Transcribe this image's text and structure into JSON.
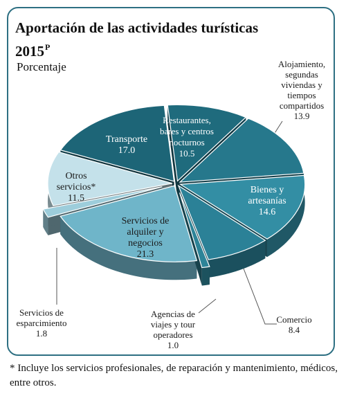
{
  "chart_data": {
    "type": "pie",
    "title": "Aportación de las actividades turísticas",
    "title_year": "2015",
    "title_superscript": "P",
    "subtitle": "Porcentaje",
    "unit": "%",
    "slices": [
      {
        "label_lines": [
          "Restaurantes,",
          "bares y centros",
          "nocturnos"
        ],
        "value": 10.5,
        "value_text": "10.5",
        "color": "#1f6b7d",
        "label_placement": "inside"
      },
      {
        "label_lines": [
          "Alojamiento,",
          "segundas",
          "viviendas y",
          "tiempos",
          "compartidos"
        ],
        "value": 13.9,
        "value_text": "13.9",
        "color": "#26788c",
        "label_placement": "outside-callout"
      },
      {
        "label_lines": [
          "Bienes y",
          "artesanías"
        ],
        "value": 14.6,
        "value_text": "14.6",
        "color": "#338ea4",
        "label_placement": "inside"
      },
      {
        "label_lines": [
          "Comercio"
        ],
        "value": 8.4,
        "value_text": "8.4",
        "color": "#2b8197",
        "label_placement": "outside-callout"
      },
      {
        "label_lines": [
          "Agencias de",
          "viajes y tour",
          "operadores"
        ],
        "value": 1.0,
        "value_text": "1.0",
        "color": "#2d8498",
        "label_placement": "outside-callout",
        "exploded": true
      },
      {
        "label_lines": [
          "Servicios de",
          "alquiler y",
          "negocios"
        ],
        "value": 21.3,
        "value_text": "21.3",
        "color": "#6fb5c9",
        "label_placement": "inside"
      },
      {
        "label_lines": [
          "Servicios de",
          "esparcimiento"
        ],
        "value": 1.8,
        "value_text": "1.8",
        "color": "#9dcddb",
        "label_placement": "outside-callout",
        "exploded": true
      },
      {
        "label_lines": [
          "Otros",
          "servicios*"
        ],
        "value": 11.5,
        "value_text": "11.5",
        "color": "#c4e1ea",
        "label_placement": "inside"
      },
      {
        "label_lines": [
          "Transporte"
        ],
        "value": 17.0,
        "value_text": "17.0",
        "color": "#1d6577",
        "label_placement": "inside"
      }
    ]
  },
  "footnote": "* Incluye los servicios profesionales, de reparación y mantenimiento, médicos, entre otros."
}
